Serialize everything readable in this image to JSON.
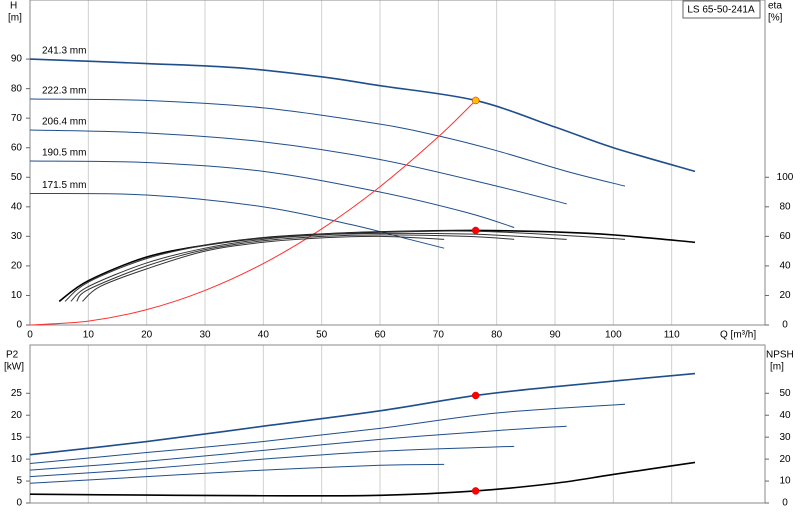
{
  "chart_data": [
    {
      "type": "line",
      "title": "LS 65-50-241A",
      "ylabel": "H",
      "yunit": "[m]",
      "y2label": "eta",
      "y2unit": "[%]",
      "xlabel": "Q [m³/h]",
      "xlim": [
        0,
        126
      ],
      "xticks": [
        0,
        10,
        20,
        30,
        40,
        50,
        60,
        70,
        80,
        90,
        100,
        110
      ],
      "ylim": [
        0,
        110
      ],
      "yticks": [
        0,
        10,
        20,
        30,
        40,
        50,
        60,
        70,
        80,
        90
      ],
      "y2lim": [
        0,
        220
      ],
      "y2ticks": [
        0,
        20,
        40,
        60,
        80,
        100
      ],
      "grid": true,
      "series": [
        {
          "name": "241.3 mm",
          "color": "#1f4e8c",
          "x": [
            0,
            20,
            36,
            50,
            60,
            76.4,
            90,
            100,
            114
          ],
          "values": [
            90,
            88.5,
            87,
            84,
            81,
            76,
            67,
            60,
            52
          ]
        },
        {
          "name": "222.3 mm",
          "color": "#1f4e8c",
          "x": [
            0,
            20,
            40,
            60,
            70,
            80,
            92,
            102
          ],
          "values": [
            76.5,
            76,
            73.5,
            68,
            64,
            59,
            52,
            47
          ]
        },
        {
          "name": "206.4 mm",
          "color": "#1f4e8c",
          "x": [
            0,
            20,
            40,
            60,
            80,
            92
          ],
          "values": [
            66,
            65,
            62,
            56,
            47,
            41
          ]
        },
        {
          "name": "190.5 mm",
          "color": "#1f4e8c",
          "x": [
            0,
            20,
            40,
            60,
            75,
            83
          ],
          "values": [
            55.5,
            55,
            52,
            45,
            38,
            33
          ]
        },
        {
          "name": "171.5 mm",
          "color": "#1f4e8c",
          "x": [
            0,
            20,
            40,
            55,
            65,
            71
          ],
          "values": [
            44.5,
            44,
            40,
            34,
            29,
            26
          ]
        },
        {
          "color": "#ff3030",
          "x": [
            0,
            10,
            20,
            30,
            40,
            50,
            60,
            70,
            76.4
          ],
          "values": [
            0,
            1.3,
            5.2,
            11.7,
            20.8,
            32.5,
            46.8,
            63.7,
            76
          ]
        },
        {
          "color": "#000000",
          "axis": "y2",
          "x": [
            5,
            10,
            20,
            30,
            40,
            50,
            60,
            76,
            90,
            100,
            114
          ],
          "values": [
            16,
            30,
            46,
            54,
            59,
            61.5,
            63,
            64,
            63,
            61,
            56
          ]
        },
        {
          "color": "#333333",
          "axis": "y2",
          "x": [
            6,
            10,
            20,
            30,
            40,
            50,
            60,
            76,
            90,
            102
          ],
          "values": [
            16,
            29,
            45,
            54,
            59,
            61.5,
            63,
            63.5,
            61,
            58
          ]
        },
        {
          "color": "#333333",
          "axis": "y2",
          "x": [
            7,
            10,
            20,
            30,
            40,
            50,
            60,
            76,
            92
          ],
          "values": [
            16,
            26,
            42,
            52,
            58,
            61,
            62,
            61.5,
            58
          ]
        },
        {
          "color": "#333333",
          "axis": "y2",
          "x": [
            8,
            10,
            20,
            30,
            40,
            50,
            60,
            75,
            83
          ],
          "values": [
            16,
            24,
            40,
            51,
            57,
            60,
            61,
            60,
            58
          ]
        },
        {
          "color": "#333333",
          "axis": "y2",
          "x": [
            9,
            12,
            20,
            30,
            40,
            50,
            60,
            71
          ],
          "values": [
            16,
            26,
            38,
            50,
            56,
            59,
            60,
            58
          ]
        },
        {
          "color": "#ffc000",
          "marker": true,
          "x": [
            76.4
          ],
          "values": [
            76
          ]
        },
        {
          "color": "#ff0000",
          "marker": true,
          "axis": "y2",
          "x": [
            76.4
          ],
          "values": [
            64
          ]
        }
      ]
    },
    {
      "type": "line",
      "ylabel": "P2",
      "yunit": "[kW]",
      "y2label": "NPSH",
      "y2unit": "[m]",
      "xlim": [
        0,
        126
      ],
      "ylim": [
        0,
        36
      ],
      "yticks": [
        0,
        5,
        10,
        15,
        20,
        25
      ],
      "y2lim": [
        0,
        72
      ],
      "y2ticks": [
        0,
        10,
        20,
        30,
        40,
        50
      ],
      "grid": true,
      "series": [
        {
          "color": "#1f4e8c",
          "x": [
            0,
            20,
            40,
            60,
            76.4,
            90,
            114
          ],
          "values": [
            11,
            14,
            17.5,
            21,
            24.5,
            26.5,
            29.5
          ]
        },
        {
          "color": "#1f4e8c",
          "x": [
            0,
            20,
            40,
            60,
            80,
            102
          ],
          "values": [
            9,
            11.5,
            14,
            17,
            20.5,
            22.5
          ]
        },
        {
          "color": "#1f4e8c",
          "x": [
            0,
            20,
            40,
            60,
            80,
            92
          ],
          "values": [
            7.5,
            9.5,
            12,
            14.5,
            16.5,
            17.5
          ]
        },
        {
          "color": "#1f4e8c",
          "x": [
            0,
            20,
            40,
            60,
            83
          ],
          "values": [
            6,
            7.8,
            10,
            11.8,
            12.9
          ]
        },
        {
          "color": "#1f4e8c",
          "x": [
            0,
            20,
            40,
            60,
            71
          ],
          "values": [
            4.5,
            6,
            7.5,
            8.6,
            8.8
          ]
        },
        {
          "color": "#000000",
          "axis": "y2",
          "x": [
            0,
            20,
            40,
            60,
            76.4,
            90,
            100,
            114
          ],
          "values": [
            4,
            3.6,
            3.3,
            3.5,
            5.5,
            9,
            13,
            18.5
          ]
        },
        {
          "color": "#ff0000",
          "marker": true,
          "x": [
            76.4
          ],
          "values": [
            24.5
          ]
        },
        {
          "color": "#ff0000",
          "marker": true,
          "axis": "y2",
          "x": [
            76.4
          ],
          "values": [
            5.5
          ]
        }
      ]
    }
  ]
}
